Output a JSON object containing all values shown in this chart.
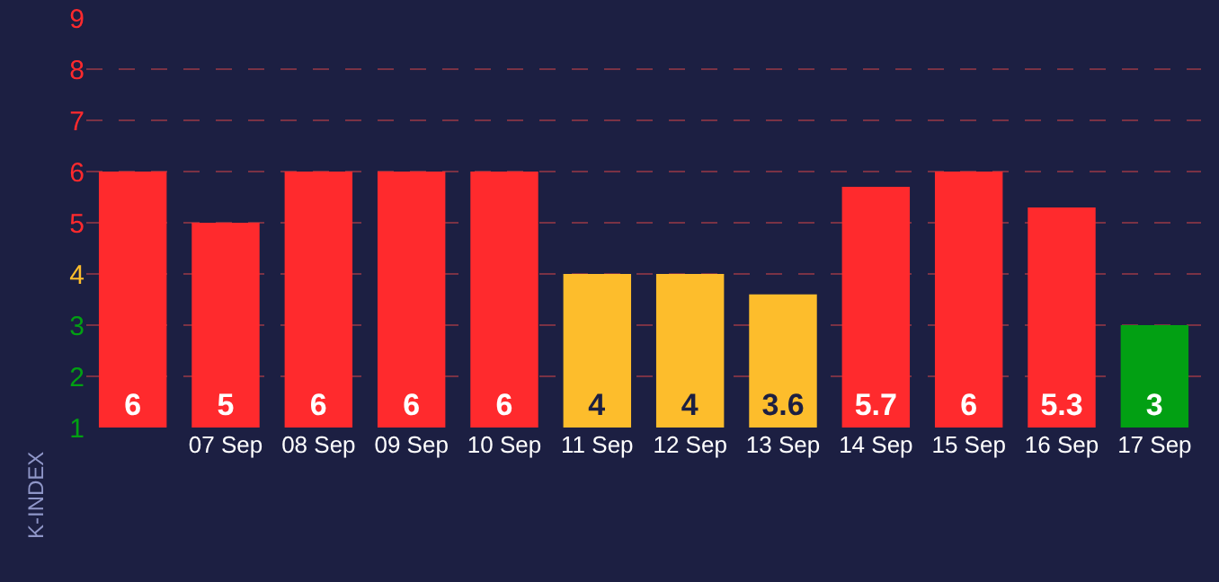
{
  "chart_data": {
    "type": "bar",
    "ylabel": "K-INDEX",
    "categories": [
      null,
      "07 Sep",
      "08 Sep",
      "09 Sep",
      "10 Sep",
      "11 Sep",
      "12 Sep",
      "13 Sep",
      "14 Sep",
      "15 Sep",
      "16 Sep",
      "17 Sep"
    ],
    "values": [
      6,
      5,
      6,
      6,
      6,
      4,
      4,
      3.6,
      5.7,
      6,
      5.3,
      3
    ],
    "colors": [
      "#ff2a2d",
      "#ff2a2d",
      "#ff2a2d",
      "#ff2a2d",
      "#ff2a2d",
      "#fdbd2c",
      "#fdbd2c",
      "#fdbd2c",
      "#ff2a2d",
      "#ff2a2d",
      "#ff2a2d",
      "#02a013"
    ],
    "ylim": [
      1,
      9
    ],
    "yticks": [
      1,
      2,
      3,
      4,
      5,
      6,
      7,
      8,
      9
    ],
    "data_labels": true,
    "grid": "y"
  }
}
